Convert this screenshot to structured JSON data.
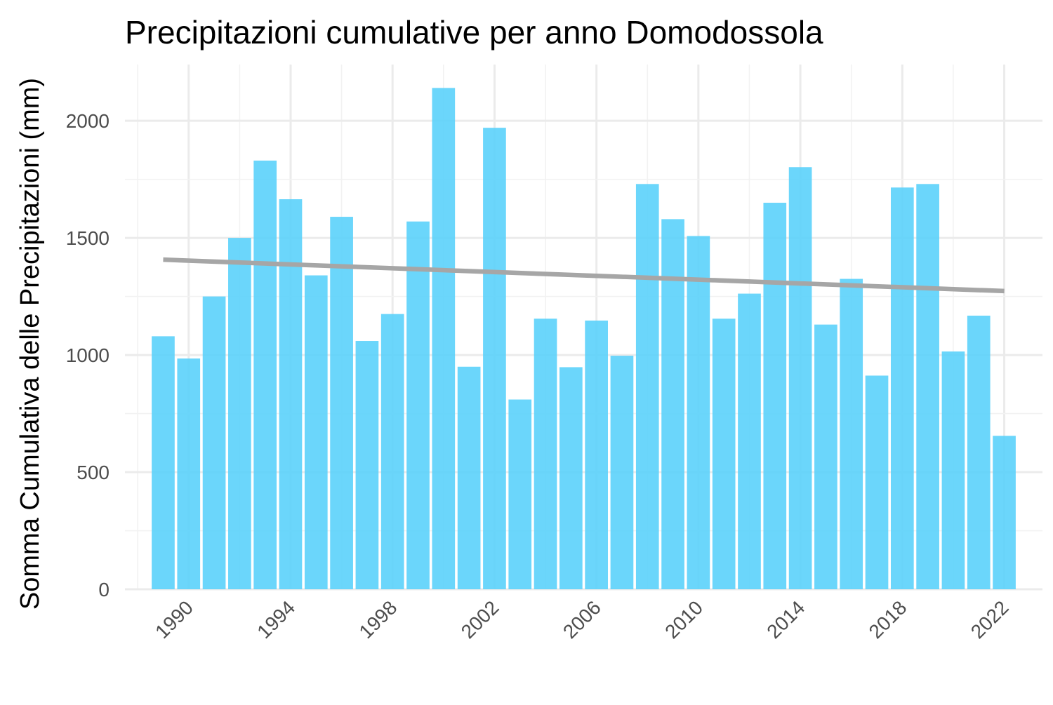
{
  "chart_data": {
    "type": "bar",
    "title": "Precipitazioni cumulative per anno Domodossola",
    "xlabel": "",
    "ylabel": "Somma Cumulativa delle Precipitazioni (mm)",
    "x": [
      1989,
      1990,
      1991,
      1992,
      1993,
      1994,
      1995,
      1996,
      1997,
      1998,
      1999,
      2000,
      2001,
      2002,
      2003,
      2004,
      2005,
      2006,
      2007,
      2008,
      2009,
      2010,
      2011,
      2012,
      2013,
      2014,
      2015,
      2016,
      2017,
      2018,
      2019,
      2020,
      2021,
      2022
    ],
    "values": [
      1080,
      985,
      1250,
      1500,
      1830,
      1665,
      1340,
      1590,
      1060,
      1175,
      1570,
      2140,
      950,
      1970,
      810,
      1155,
      948,
      1147,
      997,
      1730,
      1580,
      1508,
      1155,
      1262,
      1650,
      1802,
      1130,
      1325,
      912,
      1715,
      1730,
      1015,
      1168,
      655
    ],
    "bar_color": "#5bd1fb",
    "trend_line": {
      "color": "#a6a6a6",
      "x": [
        1989,
        2022
      ],
      "y": [
        1407,
        1273
      ]
    },
    "x_ticks": [
      "1990",
      "1994",
      "1998",
      "2002",
      "2006",
      "2010",
      "2014",
      "2018",
      "2022"
    ],
    "y_ticks": [
      "0",
      "500",
      "1000",
      "1500",
      "2000"
    ],
    "xlim": [
      1987.5,
      2023.5
    ],
    "ylim": [
      0,
      2240
    ],
    "grid": true,
    "legend": "none"
  }
}
